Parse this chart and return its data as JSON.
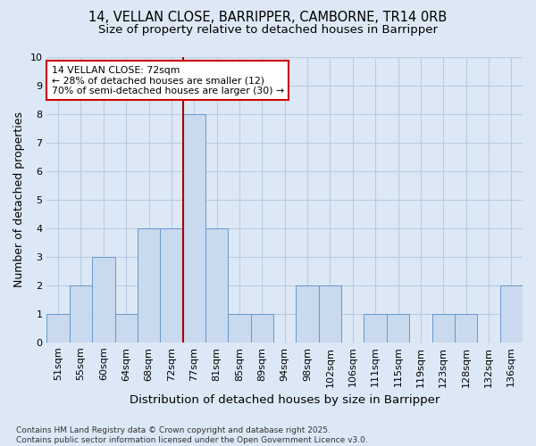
{
  "title1": "14, VELLAN CLOSE, BARRIPPER, CAMBORNE, TR14 0RB",
  "title2": "Size of property relative to detached houses in Barripper",
  "xlabel": "Distribution of detached houses by size in Barripper",
  "ylabel": "Number of detached properties",
  "categories": [
    "51sqm",
    "55sqm",
    "60sqm",
    "64sqm",
    "68sqm",
    "72sqm",
    "77sqm",
    "81sqm",
    "85sqm",
    "89sqm",
    "94sqm",
    "98sqm",
    "102sqm",
    "106sqm",
    "111sqm",
    "115sqm",
    "119sqm",
    "123sqm",
    "128sqm",
    "132sqm",
    "136sqm"
  ],
  "values": [
    1,
    2,
    3,
    1,
    4,
    4,
    8,
    4,
    1,
    1,
    0,
    2,
    2,
    0,
    1,
    1,
    0,
    1,
    1,
    0,
    2
  ],
  "bar_color": "#c9d9ee",
  "bar_edge_color": "#6699cc",
  "vline_index": 5,
  "vline_color": "#aa0000",
  "annotation_text": "14 VELLAN CLOSE: 72sqm\n← 28% of detached houses are smaller (12)\n70% of semi-detached houses are larger (30) →",
  "annotation_box_color": "#ffffff",
  "annotation_box_edge": "#cc0000",
  "ylim": [
    0,
    10
  ],
  "yticks": [
    0,
    1,
    2,
    3,
    4,
    5,
    6,
    7,
    8,
    9,
    10
  ],
  "footer": "Contains HM Land Registry data © Crown copyright and database right 2025.\nContains public sector information licensed under the Open Government Licence v3.0.",
  "bg_color": "#dce8f5",
  "plot_bg_color": "#dce8f5",
  "grid_color": "#b8cce4",
  "title_fontsize": 10.5,
  "subtitle_fontsize": 9.5,
  "axis_label_fontsize": 9,
  "tick_fontsize": 8,
  "footer_fontsize": 6.5
}
